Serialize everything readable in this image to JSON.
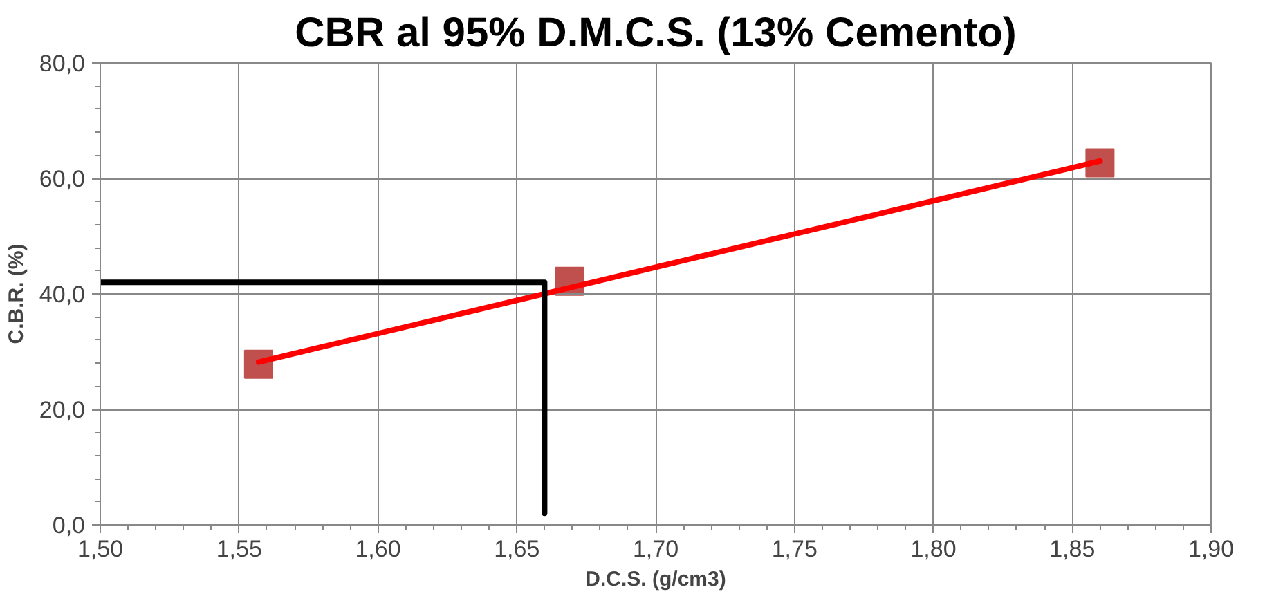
{
  "chart_data": {
    "type": "scatter",
    "title": "CBR al 95% D.M.C.S. (13% Cemento)",
    "xlabel": "D.C.S. (g/cm3)",
    "ylabel": "C.B.R. (%)",
    "xlim": [
      1.5,
      1.9
    ],
    "ylim": [
      0,
      80
    ],
    "xticks": [
      {
        "value": 1.5,
        "label": "1,50"
      },
      {
        "value": 1.55,
        "label": "1,55"
      },
      {
        "value": 1.6,
        "label": "1,60"
      },
      {
        "value": 1.65,
        "label": "1,65"
      },
      {
        "value": 1.7,
        "label": "1,70"
      },
      {
        "value": 1.75,
        "label": "1,75"
      },
      {
        "value": 1.8,
        "label": "1,80"
      },
      {
        "value": 1.85,
        "label": "1,85"
      },
      {
        "value": 1.9,
        "label": "1,90"
      }
    ],
    "yticks": [
      {
        "value": 0,
        "label": "0,0"
      },
      {
        "value": 20,
        "label": "20,0"
      },
      {
        "value": 40,
        "label": "40,0"
      },
      {
        "value": 60,
        "label": "60,0"
      },
      {
        "value": 80,
        "label": "80,0"
      }
    ],
    "grid": true,
    "series": [
      {
        "type": "line",
        "color": "#ff0000",
        "x": [
          1.557,
          1.86
        ],
        "values": [
          28.2,
          63.0
        ],
        "marker": "none"
      },
      {
        "type": "line",
        "color": "#000000",
        "x": [
          1.5,
          1.66,
          1.66
        ],
        "values": [
          42.0,
          42.0,
          2.0
        ],
        "marker": "none"
      },
      {
        "color": "#c0504d",
        "x": [
          1.557,
          1.669,
          1.86
        ],
        "values": [
          27.8,
          42.2,
          62.7
        ],
        "marker": "square"
      }
    ]
  }
}
